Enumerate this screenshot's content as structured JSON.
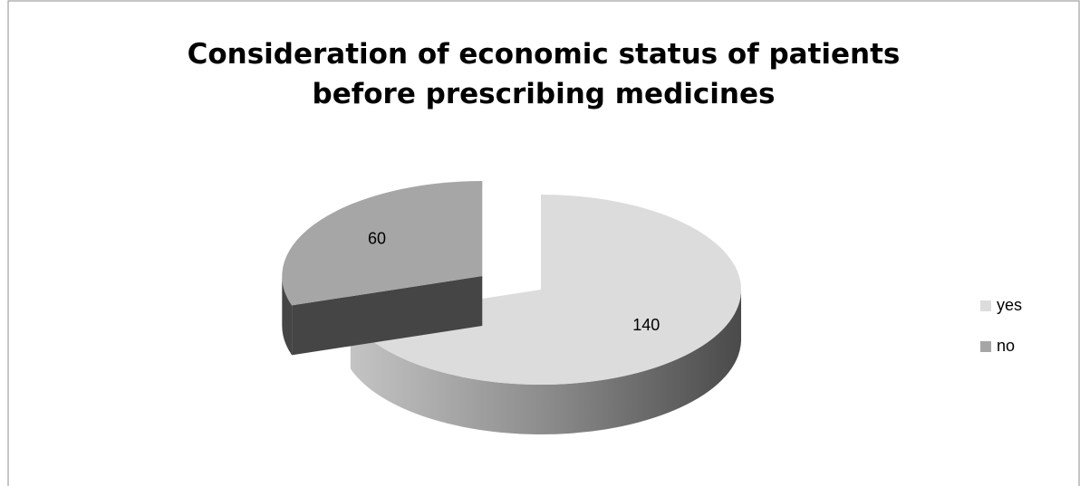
{
  "chart_data": {
    "type": "pie3d",
    "title": "Consideration of economic status of patients before prescribing medicines",
    "categories": [
      "yes",
      "no"
    ],
    "values": [
      140,
      60
    ],
    "colors": [
      "#dcdcdc",
      "#a6a6a6"
    ],
    "legend": "right"
  }
}
